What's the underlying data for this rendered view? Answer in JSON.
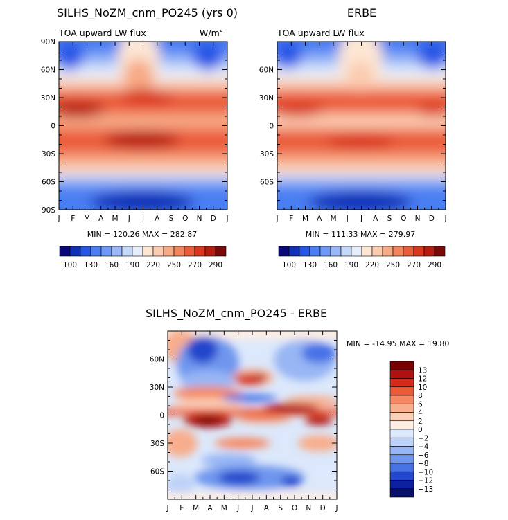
{
  "chart_data": [
    {
      "type": "heatmap",
      "title": "SILHS_NoZM_cnm_PO245 (yrs 0)",
      "subtitle": "TOA upward LW flux",
      "units": "W/m",
      "units_sup": "2",
      "x_ticks": [
        "J",
        "F",
        "M",
        "A",
        "M",
        "J",
        "J",
        "A",
        "S",
        "O",
        "N",
        "D",
        "J"
      ],
      "y_ticks": [
        "90N",
        "60N",
        "30N",
        "0",
        "30S",
        "60S",
        "90S"
      ],
      "y_tick_values": [
        90,
        60,
        30,
        0,
        -30,
        -60,
        -90
      ],
      "ylim": [
        -90,
        90
      ],
      "stats": "MIN = 120.26 MAX = 282.87",
      "colorbar_labels": [
        "100",
        "130",
        "160",
        "190",
        "220",
        "250",
        "270",
        "290"
      ]
    },
    {
      "type": "heatmap",
      "title": "ERBE",
      "subtitle": "TOA upward LW flux",
      "x_ticks": [
        "J",
        "F",
        "M",
        "A",
        "M",
        "J",
        "J",
        "A",
        "S",
        "O",
        "N",
        "D",
        "J"
      ],
      "y_ticks": [
        "60N",
        "30N",
        "0",
        "30S",
        "60S"
      ],
      "y_tick_values": [
        60,
        30,
        0,
        -30,
        -60
      ],
      "ylim": [
        -90,
        90
      ],
      "stats": "MIN = 111.33 MAX = 279.97",
      "colorbar_labels": [
        "100",
        "130",
        "160",
        "190",
        "220",
        "250",
        "270",
        "290"
      ]
    },
    {
      "type": "heatmap",
      "title": "SILHS_NoZM_cnm_PO245 - ERBE",
      "x_ticks": [
        "J",
        "F",
        "M",
        "A",
        "M",
        "J",
        "J",
        "A",
        "S",
        "O",
        "N",
        "D",
        "J"
      ],
      "y_ticks": [
        "60N",
        "30N",
        "0",
        "30S",
        "60S"
      ],
      "y_tick_values": [
        60,
        30,
        0,
        -30,
        -60
      ],
      "ylim": [
        -90,
        90
      ],
      "stats": "MIN = -14.95 MAX =  19.80",
      "colorbar_labels": [
        "13",
        "12",
        "10",
        "8",
        "6",
        "4",
        "2",
        "0",
        "−2",
        "−4",
        "−6",
        "−8",
        "−10",
        "−12",
        "−13"
      ]
    }
  ],
  "colors": {
    "abs_scale": [
      "#08087a",
      "#1030b8",
      "#2656e6",
      "#4a7ef2",
      "#6e98f6",
      "#9ab8f8",
      "#c4d8fa",
      "#e6eefb",
      "#fde6d4",
      "#fbccb0",
      "#f7aa86",
      "#f2845e",
      "#eb5d3a",
      "#d9381e",
      "#b81c10",
      "#7a0a08"
    ],
    "diff_scale": [
      "#7a0000",
      "#b01010",
      "#d62a1a",
      "#ec5a38",
      "#f58862",
      "#f8ad8c",
      "#fbd0b8",
      "#fdeee4",
      "#dce8fb",
      "#bcd2f8",
      "#98b6f4",
      "#6e96ee",
      "#4672e6",
      "#2246cc",
      "#0c20a0",
      "#08106a"
    ]
  }
}
